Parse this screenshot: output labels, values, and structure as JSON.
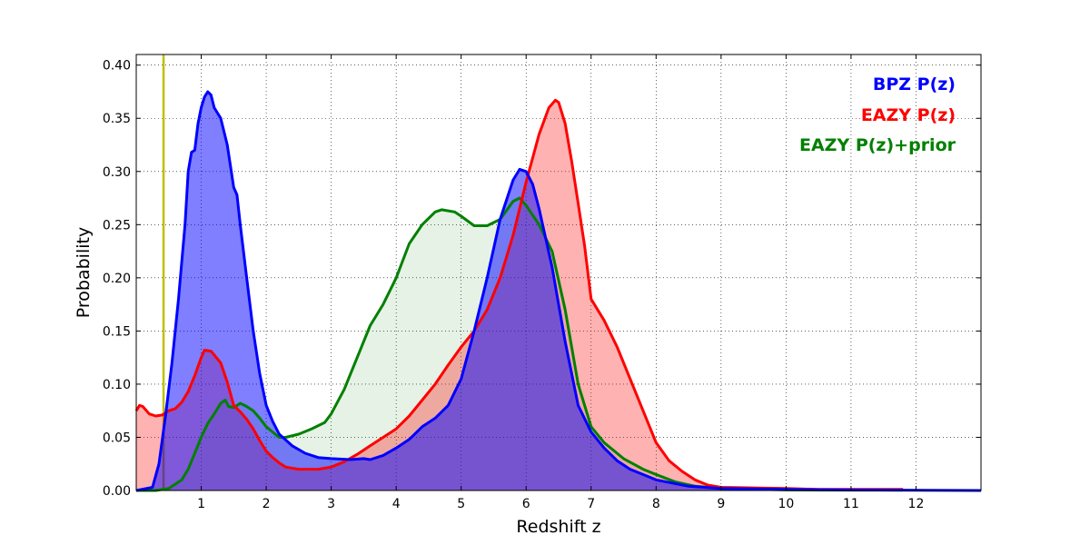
{
  "chart_data": {
    "type": "area",
    "title": "",
    "xlabel": "Redshift z",
    "ylabel": "Probability",
    "xlim": [
      0,
      13
    ],
    "ylim": [
      0,
      0.41
    ],
    "grid": true,
    "legend_position": "top-right",
    "x_ticks": [
      1,
      2,
      3,
      4,
      5,
      6,
      7,
      8,
      9,
      10,
      11,
      12
    ],
    "x_tick_labels": [
      "1",
      "2",
      "3",
      "4",
      "5",
      "6",
      "7",
      "8",
      "9",
      "10",
      "11",
      "12"
    ],
    "y_ticks": [
      0.0,
      0.05,
      0.1,
      0.15,
      0.2,
      0.25,
      0.3,
      0.35,
      0.4
    ],
    "y_tick_labels": [
      "0.00",
      "0.05",
      "0.10",
      "0.15",
      "0.20",
      "0.25",
      "0.30",
      "0.35",
      "0.40"
    ],
    "vertical_line": {
      "x": 0.42,
      "color": "#bfbf00"
    },
    "series": [
      {
        "name": "EAZY P(z)+prior",
        "color": "#008000",
        "fill_opacity": 0.1,
        "points": [
          [
            0,
            0
          ],
          [
            0.3,
            0.0
          ],
          [
            0.5,
            0.002
          ],
          [
            0.7,
            0.01
          ],
          [
            0.8,
            0.02
          ],
          [
            0.9,
            0.035
          ],
          [
            1.0,
            0.05
          ],
          [
            1.1,
            0.063
          ],
          [
            1.2,
            0.072
          ],
          [
            1.3,
            0.082
          ],
          [
            1.37,
            0.085
          ],
          [
            1.42,
            0.079
          ],
          [
            1.5,
            0.078
          ],
          [
            1.6,
            0.082
          ],
          [
            1.7,
            0.079
          ],
          [
            1.8,
            0.075
          ],
          [
            1.9,
            0.068
          ],
          [
            2.0,
            0.06
          ],
          [
            2.1,
            0.055
          ],
          [
            2.2,
            0.05
          ],
          [
            2.3,
            0.05
          ],
          [
            2.5,
            0.053
          ],
          [
            2.7,
            0.058
          ],
          [
            2.9,
            0.064
          ],
          [
            3.0,
            0.072
          ],
          [
            3.2,
            0.095
          ],
          [
            3.4,
            0.125
          ],
          [
            3.6,
            0.155
          ],
          [
            3.8,
            0.175
          ],
          [
            4.0,
            0.2
          ],
          [
            4.2,
            0.232
          ],
          [
            4.4,
            0.25
          ],
          [
            4.6,
            0.262
          ],
          [
            4.7,
            0.264
          ],
          [
            4.9,
            0.262
          ],
          [
            5.0,
            0.258
          ],
          [
            5.2,
            0.249
          ],
          [
            5.4,
            0.249
          ],
          [
            5.6,
            0.255
          ],
          [
            5.8,
            0.272
          ],
          [
            5.9,
            0.275
          ],
          [
            6.0,
            0.268
          ],
          [
            6.2,
            0.25
          ],
          [
            6.4,
            0.225
          ],
          [
            6.6,
            0.17
          ],
          [
            6.8,
            0.1
          ],
          [
            7.0,
            0.06
          ],
          [
            7.2,
            0.045
          ],
          [
            7.5,
            0.03
          ],
          [
            7.8,
            0.02
          ],
          [
            8.0,
            0.015
          ],
          [
            8.3,
            0.008
          ],
          [
            8.6,
            0.004
          ],
          [
            9.0,
            0.002
          ],
          [
            10.0,
            0.0005
          ],
          [
            11.0,
            0.0003
          ],
          [
            11.8,
            0.0003
          ]
        ]
      },
      {
        "name": "EAZY P(z)",
        "color": "#ff0000",
        "fill_opacity": 0.3,
        "points": [
          [
            0,
            0.075
          ],
          [
            0.05,
            0.08
          ],
          [
            0.1,
            0.079
          ],
          [
            0.2,
            0.072
          ],
          [
            0.3,
            0.07
          ],
          [
            0.4,
            0.071
          ],
          [
            0.5,
            0.075
          ],
          [
            0.6,
            0.077
          ],
          [
            0.7,
            0.083
          ],
          [
            0.8,
            0.093
          ],
          [
            0.9,
            0.108
          ],
          [
            1.0,
            0.125
          ],
          [
            1.05,
            0.132
          ],
          [
            1.15,
            0.131
          ],
          [
            1.3,
            0.12
          ],
          [
            1.4,
            0.102
          ],
          [
            1.5,
            0.08
          ],
          [
            1.6,
            0.074
          ],
          [
            1.7,
            0.067
          ],
          [
            1.8,
            0.058
          ],
          [
            1.9,
            0.047
          ],
          [
            2.0,
            0.037
          ],
          [
            2.1,
            0.031
          ],
          [
            2.2,
            0.026
          ],
          [
            2.3,
            0.022
          ],
          [
            2.5,
            0.02
          ],
          [
            2.8,
            0.02
          ],
          [
            3.0,
            0.022
          ],
          [
            3.2,
            0.027
          ],
          [
            3.4,
            0.034
          ],
          [
            3.6,
            0.042
          ],
          [
            3.8,
            0.05
          ],
          [
            4.0,
            0.058
          ],
          [
            4.2,
            0.07
          ],
          [
            4.4,
            0.085
          ],
          [
            4.6,
            0.1
          ],
          [
            4.8,
            0.118
          ],
          [
            5.0,
            0.135
          ],
          [
            5.2,
            0.15
          ],
          [
            5.4,
            0.17
          ],
          [
            5.6,
            0.2
          ],
          [
            5.8,
            0.24
          ],
          [
            6.0,
            0.29
          ],
          [
            6.2,
            0.335
          ],
          [
            6.35,
            0.36
          ],
          [
            6.45,
            0.367
          ],
          [
            6.5,
            0.365
          ],
          [
            6.6,
            0.345
          ],
          [
            6.7,
            0.31
          ],
          [
            6.8,
            0.27
          ],
          [
            6.9,
            0.23
          ],
          [
            7.0,
            0.18
          ],
          [
            7.2,
            0.16
          ],
          [
            7.4,
            0.135
          ],
          [
            7.6,
            0.105
          ],
          [
            7.8,
            0.075
          ],
          [
            8.0,
            0.045
          ],
          [
            8.2,
            0.028
          ],
          [
            8.4,
            0.018
          ],
          [
            8.6,
            0.01
          ],
          [
            8.8,
            0.005
          ],
          [
            9.0,
            0.003
          ],
          [
            10.0,
            0.002
          ],
          [
            10.5,
            0.001
          ],
          [
            11.8,
            0.001
          ]
        ]
      },
      {
        "name": "BPZ P(z)",
        "color": "#0000ff",
        "fill_opacity": 0.5,
        "points": [
          [
            0,
            0
          ],
          [
            0.25,
            0.003
          ],
          [
            0.35,
            0.025
          ],
          [
            0.45,
            0.07
          ],
          [
            0.55,
            0.12
          ],
          [
            0.65,
            0.18
          ],
          [
            0.75,
            0.25
          ],
          [
            0.8,
            0.3
          ],
          [
            0.85,
            0.318
          ],
          [
            0.9,
            0.32
          ],
          [
            0.95,
            0.345
          ],
          [
            1.0,
            0.36
          ],
          [
            1.05,
            0.37
          ],
          [
            1.1,
            0.375
          ],
          [
            1.15,
            0.372
          ],
          [
            1.2,
            0.36
          ],
          [
            1.3,
            0.35
          ],
          [
            1.4,
            0.325
          ],
          [
            1.5,
            0.285
          ],
          [
            1.55,
            0.278
          ],
          [
            1.6,
            0.25
          ],
          [
            1.7,
            0.2
          ],
          [
            1.8,
            0.15
          ],
          [
            1.9,
            0.11
          ],
          [
            2.0,
            0.08
          ],
          [
            2.1,
            0.065
          ],
          [
            2.2,
            0.053
          ],
          [
            2.4,
            0.042
          ],
          [
            2.6,
            0.035
          ],
          [
            2.8,
            0.031
          ],
          [
            3.0,
            0.03
          ],
          [
            3.3,
            0.029
          ],
          [
            3.5,
            0.03
          ],
          [
            3.6,
            0.029
          ],
          [
            3.8,
            0.033
          ],
          [
            4.0,
            0.04
          ],
          [
            4.2,
            0.048
          ],
          [
            4.4,
            0.06
          ],
          [
            4.6,
            0.068
          ],
          [
            4.8,
            0.08
          ],
          [
            5.0,
            0.105
          ],
          [
            5.2,
            0.15
          ],
          [
            5.4,
            0.2
          ],
          [
            5.6,
            0.255
          ],
          [
            5.8,
            0.292
          ],
          [
            5.9,
            0.302
          ],
          [
            6.0,
            0.3
          ],
          [
            6.1,
            0.288
          ],
          [
            6.2,
            0.265
          ],
          [
            6.4,
            0.21
          ],
          [
            6.6,
            0.14
          ],
          [
            6.8,
            0.08
          ],
          [
            7.0,
            0.055
          ],
          [
            7.2,
            0.04
          ],
          [
            7.4,
            0.028
          ],
          [
            7.6,
            0.02
          ],
          [
            7.8,
            0.015
          ],
          [
            8.0,
            0.01
          ],
          [
            8.5,
            0.004
          ],
          [
            9.0,
            0.002
          ],
          [
            10.0,
            0.001
          ],
          [
            11.0,
            0.0005
          ],
          [
            13.0,
            0.0
          ]
        ]
      }
    ]
  }
}
